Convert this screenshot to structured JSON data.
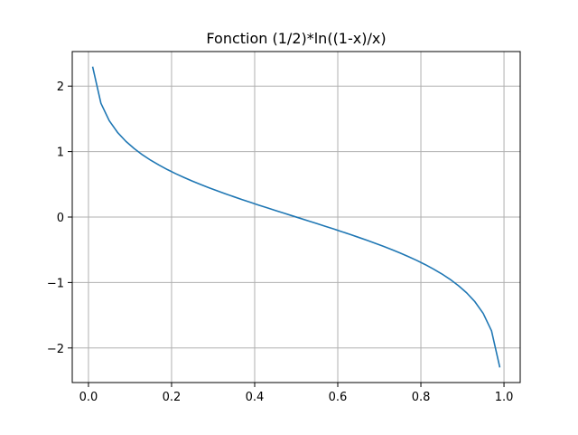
{
  "chart_data": {
    "type": "line",
    "title": "Fonction (1/2)*ln((1-x)/x)",
    "xlabel": "",
    "ylabel": "",
    "xlim": [
      -0.039,
      1.039
    ],
    "ylim": [
      -2.528,
      2.528
    ],
    "xticks": [
      0.0,
      0.2,
      0.4,
      0.6,
      0.8,
      1.0
    ],
    "xtick_labels": [
      "0.0",
      "0.2",
      "0.4",
      "0.6",
      "0.8",
      "1.0"
    ],
    "yticks": [
      2,
      1,
      0,
      -1,
      -2
    ],
    "ytick_labels": [
      "2",
      "1",
      "0",
      "−1",
      "−2"
    ],
    "grid": true,
    "series": [
      {
        "color": "#1f77b4",
        "x": [
          0.01,
          0.03,
          0.05,
          0.07,
          0.09,
          0.11,
          0.13,
          0.15,
          0.17,
          0.19,
          0.21,
          0.23,
          0.25,
          0.27,
          0.29,
          0.31,
          0.33,
          0.35,
          0.37,
          0.39,
          0.41,
          0.43,
          0.45,
          0.47,
          0.49,
          0.51,
          0.53,
          0.55,
          0.57,
          0.59,
          0.61,
          0.63,
          0.65,
          0.67,
          0.69,
          0.71,
          0.73,
          0.75,
          0.77,
          0.79,
          0.81,
          0.83,
          0.85,
          0.87,
          0.89,
          0.91,
          0.93,
          0.95,
          0.97,
          0.99
        ],
        "y": [
          2.298,
          1.738,
          1.472,
          1.293,
          1.157,
          1.046,
          0.95,
          0.867,
          0.793,
          0.725,
          0.662,
          0.604,
          0.549,
          0.497,
          0.448,
          0.4,
          0.354,
          0.31,
          0.266,
          0.224,
          0.182,
          0.141,
          0.1,
          0.06,
          0.02,
          -0.02,
          -0.06,
          -0.1,
          -0.141,
          -0.182,
          -0.224,
          -0.266,
          -0.31,
          -0.354,
          -0.4,
          -0.448,
          -0.497,
          -0.549,
          -0.604,
          -0.662,
          -0.725,
          -0.793,
          -0.867,
          -0.95,
          -1.046,
          -1.157,
          -1.293,
          -1.472,
          -1.738,
          -2.298
        ]
      }
    ]
  }
}
